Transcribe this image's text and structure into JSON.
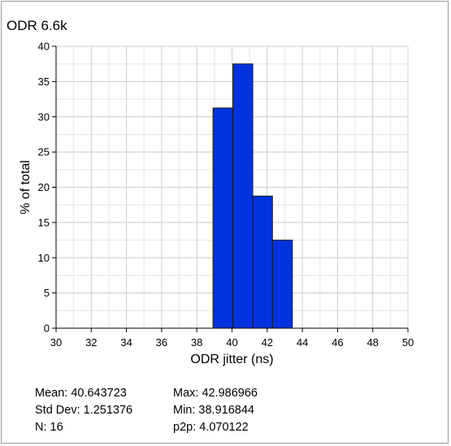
{
  "chart_data": {
    "type": "bar",
    "title": "ODR 6.6k",
    "xlabel": "ODR jitter (ns)",
    "ylabel": "% of total",
    "xlim": [
      30,
      50
    ],
    "ylim": [
      0,
      40
    ],
    "xticks": [
      "30",
      "32",
      "34",
      "36",
      "38",
      "40",
      "42",
      "44",
      "46",
      "48",
      "50"
    ],
    "yticks": [
      "0",
      "5",
      "10",
      "15",
      "20",
      "25",
      "30",
      "35",
      "40"
    ],
    "grid": true,
    "bar_color": "#0033dd",
    "bar_edge_color": "#1a1a1a",
    "bins": [
      {
        "start": 38.92,
        "end": 40.05,
        "value": 31.25
      },
      {
        "start": 40.05,
        "end": 41.18,
        "value": 37.5
      },
      {
        "start": 41.18,
        "end": 42.3,
        "value": 18.75
      },
      {
        "start": 42.3,
        "end": 43.43,
        "value": 12.5
      }
    ]
  },
  "stats": {
    "left": [
      "Mean: 40.643723",
      "Std Dev: 1.251376",
      "N: 16"
    ],
    "right": [
      "Max: 42.986966",
      "Min: 38.916844",
      "p2p: 4.070122"
    ]
  }
}
